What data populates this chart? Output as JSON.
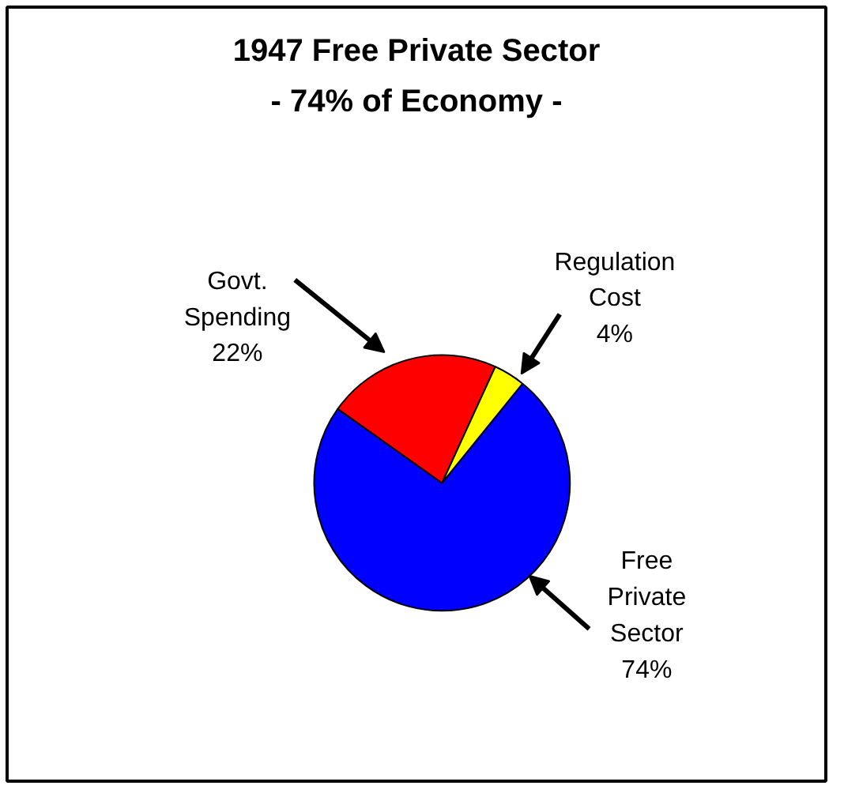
{
  "chart_data": {
    "type": "pie",
    "title": "1947 Free Private Sector",
    "subtitle": "- 74% of Economy -",
    "categories": [
      "Free Private Sector",
      "Govt. Spending",
      "Regulation Cost"
    ],
    "values": [
      74,
      22,
      4
    ],
    "colors": [
      "#0000ff",
      "#ff0000",
      "#ffff00"
    ],
    "value_labels": [
      "74%",
      "22%",
      "4%"
    ]
  }
}
